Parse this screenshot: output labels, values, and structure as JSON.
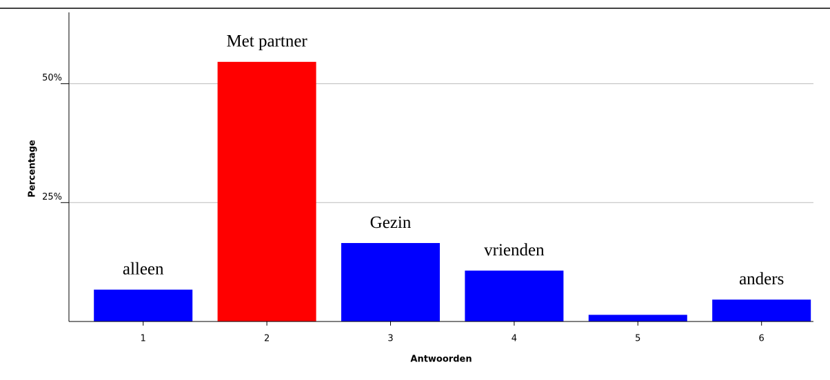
{
  "chart_data": {
    "type": "bar",
    "x_label": "Antwoorden",
    "y_label": "Percentage",
    "categories": [
      "1",
      "2",
      "3",
      "4",
      "5",
      "6"
    ],
    "values": [
      6.7,
      54.6,
      16.5,
      10.7,
      1.4,
      4.6
    ],
    "colors": [
      "#0000ff",
      "#ff0000",
      "#0000ff",
      "#0000ff",
      "#0000ff",
      "#0000ff"
    ],
    "bar_labels": [
      "alleen",
      "Met partner",
      "Gezin",
      "vrienden",
      null,
      "anders"
    ],
    "ylim": [
      0,
      65
    ],
    "yticks": [
      {
        "value": 25,
        "label": "25%"
      },
      {
        "value": 50,
        "label": "50%"
      }
    ],
    "grid": true
  }
}
